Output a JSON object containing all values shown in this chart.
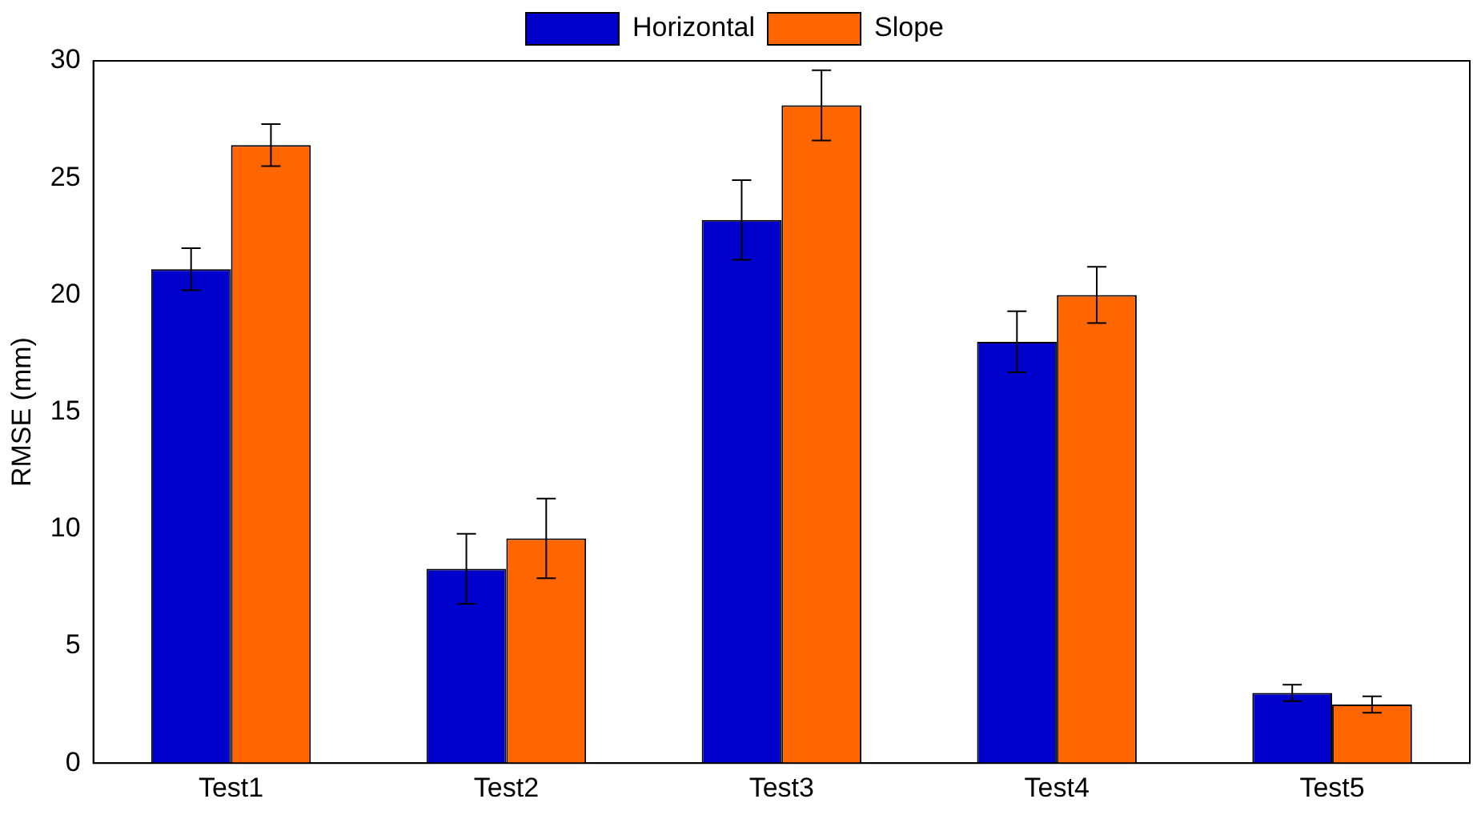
{
  "chart_data": {
    "type": "bar",
    "ylabel": "RMSE (mm)",
    "categories": [
      "Test1",
      "Test2",
      "Test3",
      "Test4",
      "Test5"
    ],
    "series": [
      {
        "name": "Horizontal",
        "color": "#0000cc",
        "values": [
          21.1,
          8.3,
          23.2,
          18.0,
          3.0
        ],
        "errors": [
          0.9,
          1.5,
          1.7,
          1.3,
          0.35
        ]
      },
      {
        "name": "Slope",
        "color": "#ff6600",
        "values": [
          26.4,
          9.6,
          28.1,
          20.0,
          2.5
        ],
        "errors": [
          0.9,
          1.7,
          1.5,
          1.2,
          0.35
        ]
      }
    ],
    "ylim": [
      0,
      30
    ],
    "yticks": [
      0,
      5,
      10,
      15,
      20,
      25,
      30
    ],
    "grid": false,
    "legend": "top"
  }
}
